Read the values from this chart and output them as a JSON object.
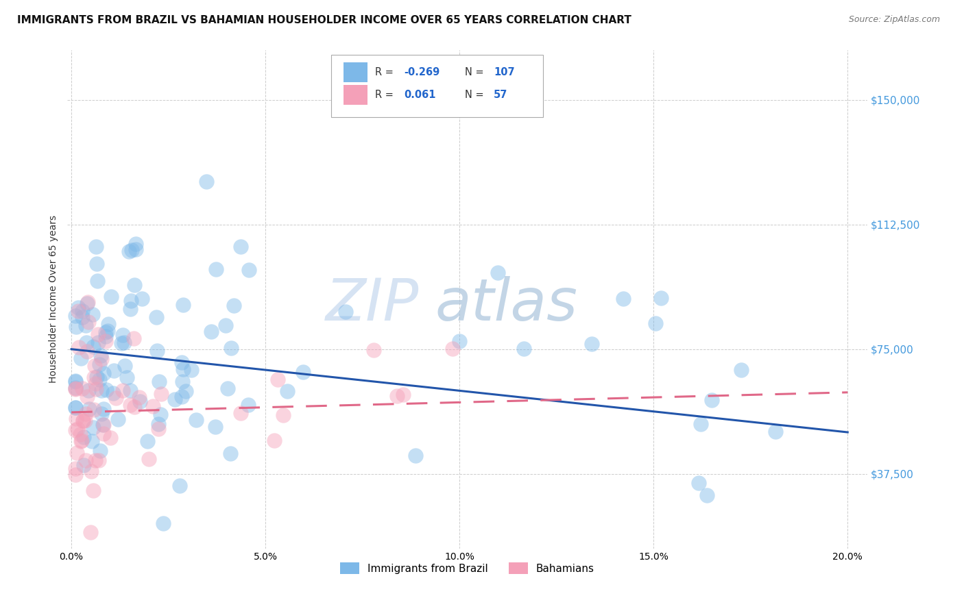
{
  "title": "IMMIGRANTS FROM BRAZIL VS BAHAMIAN HOUSEHOLDER INCOME OVER 65 YEARS CORRELATION CHART",
  "source": "Source: ZipAtlas.com",
  "ylabel": "Householder Income Over 65 years",
  "xlabel_ticks": [
    "0.0%",
    "5.0%",
    "10.0%",
    "15.0%",
    "20.0%"
  ],
  "xlabel_vals": [
    0.0,
    0.05,
    0.1,
    0.15,
    0.2
  ],
  "ytick_labels": [
    "$37,500",
    "$75,000",
    "$112,500",
    "$150,000"
  ],
  "ytick_vals": [
    37500,
    75000,
    112500,
    150000
  ],
  "ylim": [
    15000,
    165000
  ],
  "xlim": [
    -0.001,
    0.205
  ],
  "legend_bottom": [
    "Immigrants from Brazil",
    "Bahamians"
  ],
  "blue_color": "#7db8e8",
  "pink_color": "#f4a0b8",
  "trendline_blue": "#2255aa",
  "trendline_pink": "#e06888",
  "watermark_zip": "ZIP",
  "watermark_atlas": "atlas",
  "brazil_R": -0.269,
  "brazil_N": 107,
  "bahamas_R": 0.061,
  "bahamas_N": 57,
  "grid_color": "#cccccc",
  "background_color": "#ffffff",
  "title_fontsize": 11,
  "axis_label_fontsize": 10,
  "tick_fontsize": 10,
  "right_tick_color": "#4499dd",
  "legend_text_color": "#333333",
  "legend_value_color": "#2266cc",
  "brazil_trendline_y0": 75000,
  "brazil_trendline_y1": 50000,
  "bahamas_trendline_y0": 56000,
  "bahamas_trendline_y1": 62000
}
